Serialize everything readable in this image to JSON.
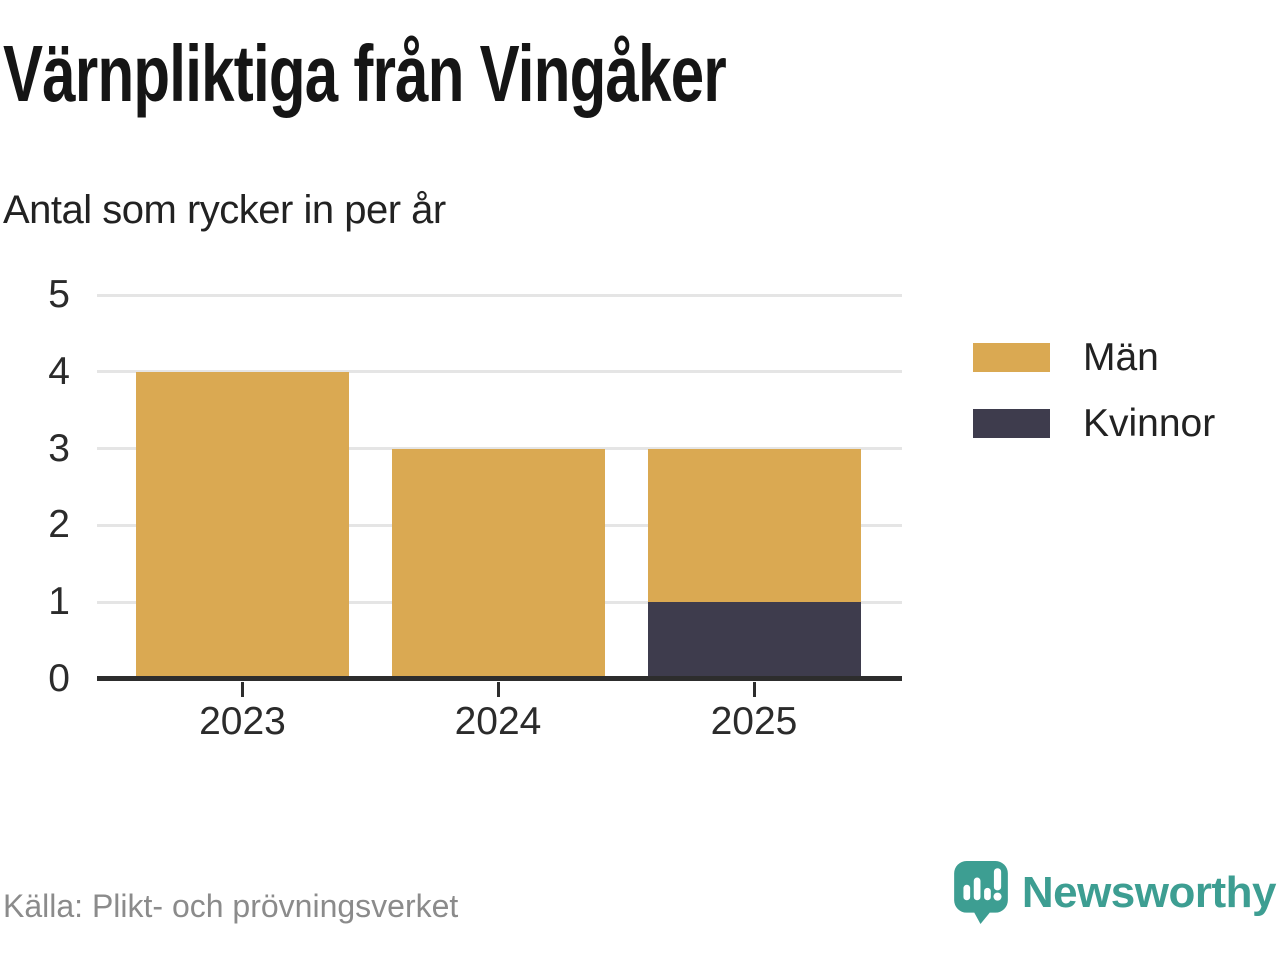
{
  "title": "Värnpliktiga från Vingåker",
  "subtitle": "Antal som rycker in per år",
  "source_label": "Källa: Plikt- och prövningsverket",
  "brand": {
    "name": "Newsworthy"
  },
  "colors": {
    "men": "#daa952",
    "women": "#3e3c4d",
    "grid": "#e5e5e5",
    "axis": "#2d2d2d",
    "tick_text": "#2b2b2b",
    "title_text": "#151515",
    "subtitle_text": "#222222",
    "source_text": "#8b8b8b",
    "brand_teal": "#3d9e92"
  },
  "legend": {
    "position": "right",
    "items": [
      {
        "label": "Män",
        "series": "Män"
      },
      {
        "label": "Kvinnor",
        "series": "Kvinnor"
      }
    ]
  },
  "chart_data": {
    "type": "bar",
    "stacked": true,
    "title": "Värnpliktiga från Vingåker",
    "subtitle": "Antal som rycker in per år",
    "categories": [
      "2023",
      "2024",
      "2025"
    ],
    "series": [
      {
        "name": "Män",
        "color": "#daa952",
        "values": [
          4,
          3,
          2
        ]
      },
      {
        "name": "Kvinnor",
        "color": "#3e3c4d",
        "values": [
          0,
          0,
          1
        ]
      }
    ],
    "stack_bottom_to_top": [
      "Kvinnor",
      "Män"
    ],
    "totals": [
      4,
      3,
      3
    ],
    "xlabel": "",
    "ylabel": "Antal som rycker in per år",
    "ylim": [
      0,
      5
    ],
    "yticks": [
      0,
      1,
      2,
      3,
      4,
      5
    ],
    "grid": true,
    "legend_position": "right",
    "source": "Källa: Plikt- och prövningsverket"
  }
}
